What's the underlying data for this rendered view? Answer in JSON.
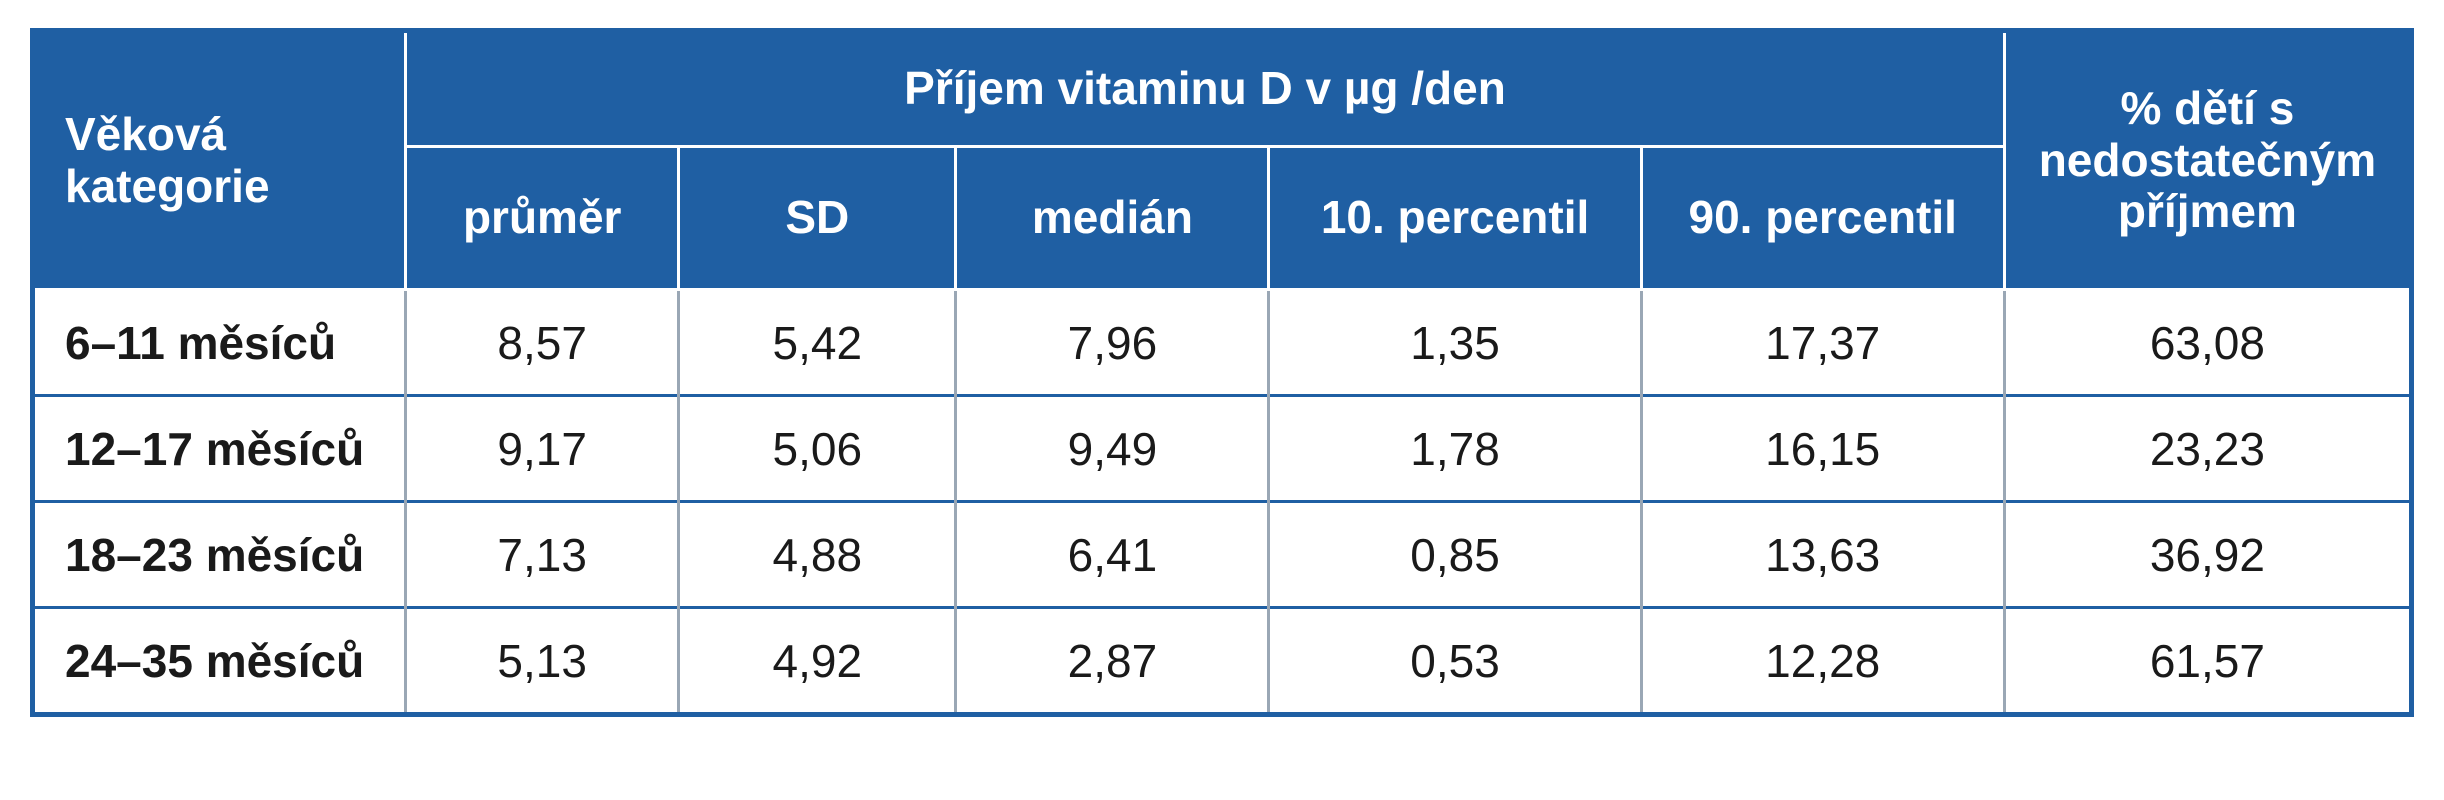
{
  "table": {
    "header": {
      "age_category": "Věková kategorie",
      "intake_group": "Příjem vitaminu D v µg /den",
      "insufficient_share": "% dětí s nedostatečným příjmem",
      "columns": [
        "průměr",
        "SD",
        "medián",
        "10. percentil",
        "90. percentil"
      ]
    },
    "rows": [
      {
        "age": "6–11 měsíců",
        "values": [
          "8,57",
          "5,42",
          "7,96",
          "1,35",
          "17,37",
          "63,08"
        ]
      },
      {
        "age": "12–17 měsíců",
        "values": [
          "9,17",
          "5,06",
          "9,49",
          "1,78",
          "16,15",
          "23,23"
        ]
      },
      {
        "age": "18–23 měsíců",
        "values": [
          "7,13",
          "4,88",
          "6,41",
          "0,85",
          "13,63",
          "36,92"
        ]
      },
      {
        "age": "24–35 měsíců",
        "values": [
          "5,13",
          "4,92",
          "2,87",
          "0,53",
          "12,28",
          "61,57"
        ]
      }
    ]
  },
  "colors": {
    "header_bg": "#1f5fa3",
    "header_text": "#ffffff",
    "row_divider": "#1f5fa3",
    "column_divider": "#9aa7b5"
  }
}
